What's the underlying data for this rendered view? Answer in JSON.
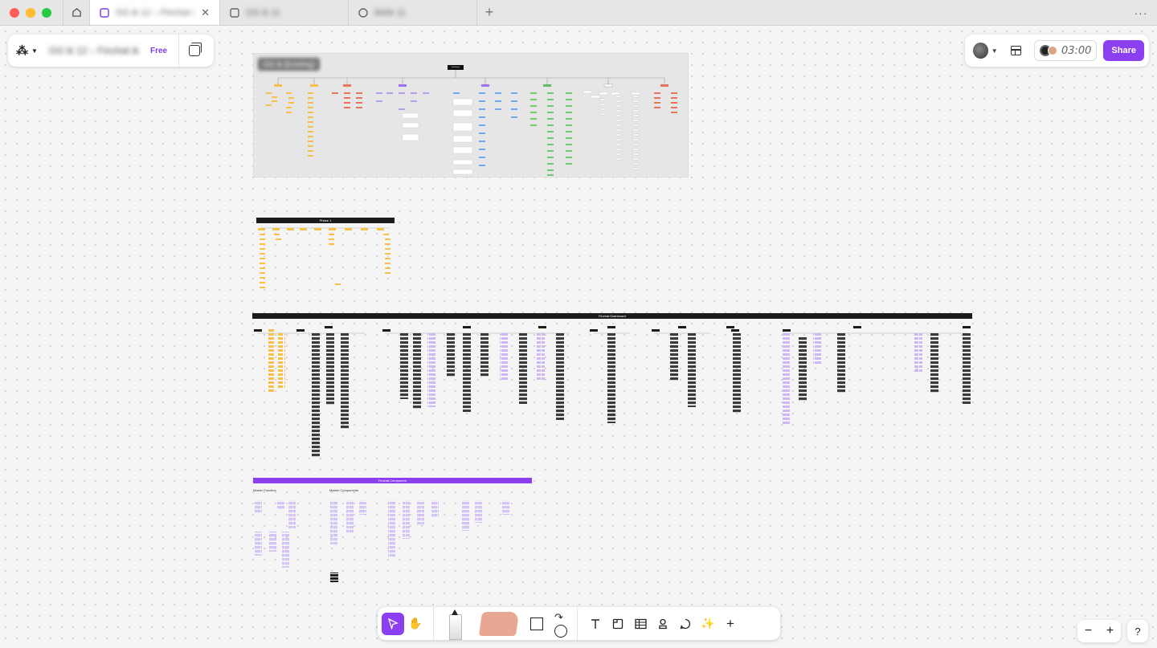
{
  "window": {
    "traffic_colors": [
      "#ff5f57",
      "#febc2e",
      "#28c840"
    ],
    "tabs": [
      {
        "label": "GG ik 12 – Finchat ik",
        "active": true
      },
      {
        "label": "GG ik 11",
        "active": false
      },
      {
        "label": "ikkkk 11",
        "active": false
      }
    ],
    "close_glyph": "✕",
    "new_tab_glyph": "+",
    "more_glyph": "···"
  },
  "file_panel": {
    "app_glyph": "⁂",
    "file_name": "GG ik 12 – Finchat ik",
    "plan_badge": "Free"
  },
  "top_right": {
    "timer": "03:00",
    "share_label": "Share"
  },
  "frames": {
    "sitemap": {
      "label": "GG ik (Existing)",
      "root": "Dashboard"
    },
    "phase": {
      "title": "Phase 1"
    },
    "dashboard": {
      "title": "Finchat Dashboard"
    },
    "components": {
      "title": "Finchat Component",
      "left_heading": "Master Function",
      "right_heading": "Master Components"
    }
  },
  "toolbar": {
    "tools": [
      "move",
      "hand",
      "pen",
      "eraser-pad",
      "shapes",
      "text",
      "section",
      "table",
      "stamp",
      "comment",
      "ai"
    ]
  },
  "zoom": {
    "minus": "−",
    "plus": "+"
  },
  "help_label": "?",
  "colors": {
    "accent": "#8b3ff0",
    "sticky_yellow": "#f7c04a",
    "sticky_red": "#e8735a",
    "sticky_blue": "#6fa8f5",
    "sticky_green": "#6ecb6e",
    "sticky_purple": "#b99cf0",
    "node_dark": "#333333"
  }
}
